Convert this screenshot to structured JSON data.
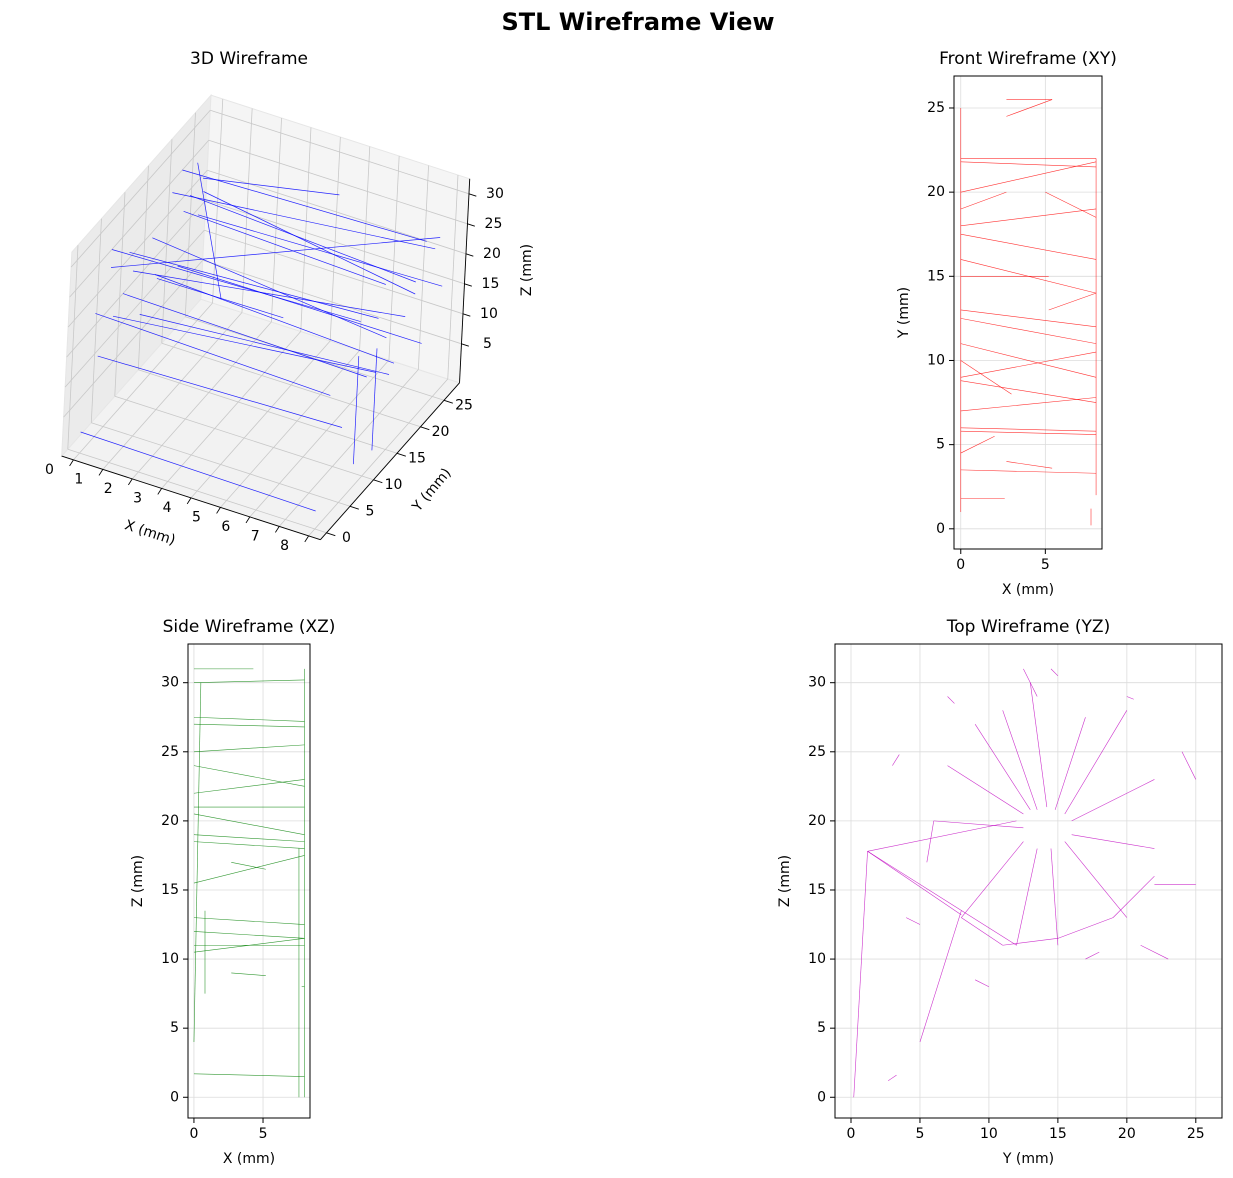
{
  "title": "STL Wireframe View",
  "chart_data": [
    {
      "type": "wireframe3d",
      "title": "3D Wireframe",
      "xlabel": "X (mm)",
      "ylabel": "Y (mm)",
      "zlabel": "Z (mm)",
      "xlim": [
        -0.4,
        8.4
      ],
      "ylim": [
        -1.3,
        28.3
      ],
      "zlim": [
        -1.5,
        32.5
      ],
      "xticks": [
        0,
        1,
        2,
        3,
        4,
        5,
        6,
        7,
        8
      ],
      "yticks": [
        0,
        5,
        10,
        15,
        20,
        25
      ],
      "zticks": [
        5,
        10,
        15,
        20,
        25,
        30
      ],
      "color": "#0000ff",
      "grid": true,
      "segments": [
        [
          0,
          20,
          28,
          8,
          22,
          27
        ],
        [
          0,
          5,
          28,
          8,
          8,
          26
        ],
        [
          0,
          22,
          22,
          8,
          20,
          22
        ],
        [
          0,
          10,
          20,
          8,
          18,
          18
        ],
        [
          0,
          15,
          15,
          8,
          16,
          12
        ],
        [
          0,
          3,
          12,
          8,
          5,
          11
        ],
        [
          0,
          20,
          12,
          8,
          22,
          10
        ],
        [
          0,
          5,
          25,
          8,
          25,
          25
        ],
        [
          7.7,
          10,
          18,
          7.7,
          10,
          0
        ],
        [
          8,
          12,
          18,
          8,
          12,
          1
        ],
        [
          0,
          0,
          2,
          8,
          0,
          1.5
        ],
        [
          1,
          18,
          30,
          5,
          22,
          30
        ],
        [
          0,
          14,
          22,
          8,
          14,
          18
        ],
        [
          0,
          25,
          20,
          8,
          20,
          20
        ],
        [
          0,
          8,
          18,
          8,
          10,
          15
        ],
        [
          2,
          2,
          29,
          6,
          4,
          27
        ],
        [
          0,
          12,
          11,
          8,
          15,
          11
        ],
        [
          0.5,
          20,
          30,
          3,
          10,
          20
        ],
        [
          0,
          18,
          26,
          8,
          24,
          24
        ],
        [
          0,
          6,
          16,
          8,
          12,
          14
        ],
        [
          0,
          24,
          17,
          8,
          26,
          16
        ],
        [
          0,
          9,
          24,
          8,
          12,
          23
        ],
        [
          1,
          14,
          28,
          7,
          20,
          20
        ],
        [
          0,
          2,
          20,
          8,
          2,
          19
        ]
      ]
    },
    {
      "type": "wireframe",
      "title": "Front Wireframe (XY)",
      "xlabel": "X (mm)",
      "ylabel": "Y (mm)",
      "xlim": [
        -0.4,
        8.35
      ],
      "ylim": [
        -1.2,
        26.9
      ],
      "xticks": [
        0,
        5
      ],
      "yticks": [
        0,
        5,
        10,
        15,
        20,
        25
      ],
      "color": "#ff0000",
      "grid": true,
      "segments": [
        [
          0,
          22,
          8,
          22
        ],
        [
          0,
          21.8,
          8,
          21.5
        ],
        [
          0,
          20,
          8,
          21.8
        ],
        [
          0,
          18,
          8,
          19
        ],
        [
          0,
          17.5,
          8,
          16
        ],
        [
          0,
          16,
          8,
          14
        ],
        [
          0,
          15,
          5.2,
          15
        ],
        [
          0,
          13,
          8,
          12
        ],
        [
          0,
          12.5,
          8,
          11
        ],
        [
          0,
          11,
          8,
          9
        ],
        [
          0,
          9,
          8,
          10.5
        ],
        [
          0,
          8.8,
          8,
          7.5
        ],
        [
          0,
          6,
          8,
          5.8
        ],
        [
          0,
          5.8,
          8,
          5.6
        ],
        [
          0,
          3.5,
          8,
          3.3
        ],
        [
          0,
          1.8,
          2.6,
          1.8
        ],
        [
          0,
          1,
          0,
          25
        ],
        [
          8,
          2,
          8,
          22
        ],
        [
          2.7,
          25.5,
          5.4,
          25.5
        ],
        [
          2.7,
          24.5,
          5.4,
          25.5
        ],
        [
          2.7,
          4,
          5.4,
          3.6
        ],
        [
          7.7,
          0.2,
          7.7,
          1.2
        ],
        [
          0,
          19,
          2.7,
          20
        ],
        [
          5.2,
          13,
          8,
          14
        ],
        [
          0,
          10,
          3,
          8
        ],
        [
          5,
          20,
          8,
          18.5
        ],
        [
          0,
          7,
          8,
          7.8
        ],
        [
          0,
          4.5,
          2,
          5.5
        ]
      ]
    },
    {
      "type": "wireframe",
      "title": "Side Wireframe (XZ)",
      "xlabel": "X (mm)",
      "ylabel": "Z (mm)",
      "xlim": [
        -0.43,
        8.4
      ],
      "ylim": [
        -1.5,
        32.8
      ],
      "xticks": [
        0,
        5
      ],
      "yticks": [
        0,
        5,
        10,
        15,
        20,
        25,
        30
      ],
      "color": "#008000",
      "grid": true,
      "segments": [
        [
          0,
          31,
          4.3,
          31
        ],
        [
          0,
          30,
          8,
          30.2
        ],
        [
          0,
          27.5,
          8,
          27.2
        ],
        [
          0,
          27,
          8,
          26.8
        ],
        [
          0,
          25,
          8,
          25.5
        ],
        [
          0,
          24,
          8,
          22.5
        ],
        [
          0,
          21,
          8,
          21
        ],
        [
          0,
          20.5,
          8,
          19
        ],
        [
          0,
          19,
          8,
          18.5
        ],
        [
          0,
          18.5,
          8,
          18
        ],
        [
          0,
          15.5,
          8,
          17.5
        ],
        [
          0,
          13,
          8,
          12.5
        ],
        [
          0,
          12,
          8,
          11.5
        ],
        [
          0,
          11,
          8,
          11
        ],
        [
          0,
          10.5,
          8,
          11.5
        ],
        [
          2.7,
          9,
          5.2,
          8.8
        ],
        [
          0,
          1.7,
          8,
          1.5
        ],
        [
          8,
          0,
          8,
          31
        ],
        [
          7.6,
          0,
          7.6,
          18
        ],
        [
          0,
          4,
          0.5,
          30
        ],
        [
          7.8,
          8,
          8,
          8
        ],
        [
          0.8,
          13.5,
          0.8,
          7.5
        ],
        [
          2.7,
          17,
          5.2,
          16.5
        ],
        [
          0,
          22,
          8,
          23
        ]
      ]
    },
    {
      "type": "wireframe",
      "title": "Top Wireframe (YZ)",
      "xlabel": "Y (mm)",
      "ylabel": "Z (mm)",
      "xlim": [
        -1.16,
        26.9
      ],
      "ylim": [
        -1.5,
        32.8
      ],
      "xticks": [
        0,
        5,
        10,
        15,
        20,
        25
      ],
      "yticks": [
        0,
        5,
        10,
        15,
        20,
        25,
        30
      ],
      "color": "#bf00bf",
      "grid": true,
      "segments": [
        [
          13.5,
          20.8,
          11,
          28
        ],
        [
          14.2,
          21,
          13,
          30
        ],
        [
          14.8,
          20.8,
          17,
          27.5
        ],
        [
          15.5,
          20.5,
          20,
          28
        ],
        [
          16,
          20,
          22,
          23
        ],
        [
          16,
          19,
          22,
          18
        ],
        [
          15.5,
          18.5,
          20,
          13
        ],
        [
          14.5,
          18,
          15,
          11
        ],
        [
          13.5,
          18,
          12,
          11
        ],
        [
          12.5,
          18.5,
          8,
          13
        ],
        [
          12.5,
          19.5,
          6,
          20
        ],
        [
          12.5,
          20.5,
          7,
          24
        ],
        [
          13,
          20.8,
          9,
          27
        ],
        [
          6,
          20,
          5.5,
          17
        ],
        [
          8,
          13,
          11,
          11
        ],
        [
          11,
          11,
          15,
          11.5
        ],
        [
          15,
          11.5,
          19,
          13
        ],
        [
          19,
          13,
          22,
          16
        ],
        [
          0.2,
          0,
          1.2,
          17.8
        ],
        [
          1.2,
          17.8,
          8,
          13.2
        ],
        [
          1.2,
          17.8,
          12,
          20
        ],
        [
          5,
          4,
          8,
          13.5
        ],
        [
          2.7,
          1.2,
          3.3,
          1.6
        ],
        [
          22,
          15.4,
          25,
          15.4
        ],
        [
          1.2,
          17.8,
          12,
          11
        ],
        [
          12.5,
          31,
          13.5,
          29
        ],
        [
          14.5,
          31,
          15,
          30.5
        ],
        [
          20,
          29,
          20.5,
          28.8
        ],
        [
          24,
          25,
          25,
          23
        ],
        [
          7,
          29,
          7.5,
          28.5
        ],
        [
          3,
          24,
          3.5,
          24.8
        ],
        [
          21,
          11,
          23,
          10
        ],
        [
          4,
          13,
          5,
          12.5
        ],
        [
          9,
          8.5,
          10,
          8
        ],
        [
          17,
          10,
          18,
          10.5
        ]
      ]
    }
  ]
}
